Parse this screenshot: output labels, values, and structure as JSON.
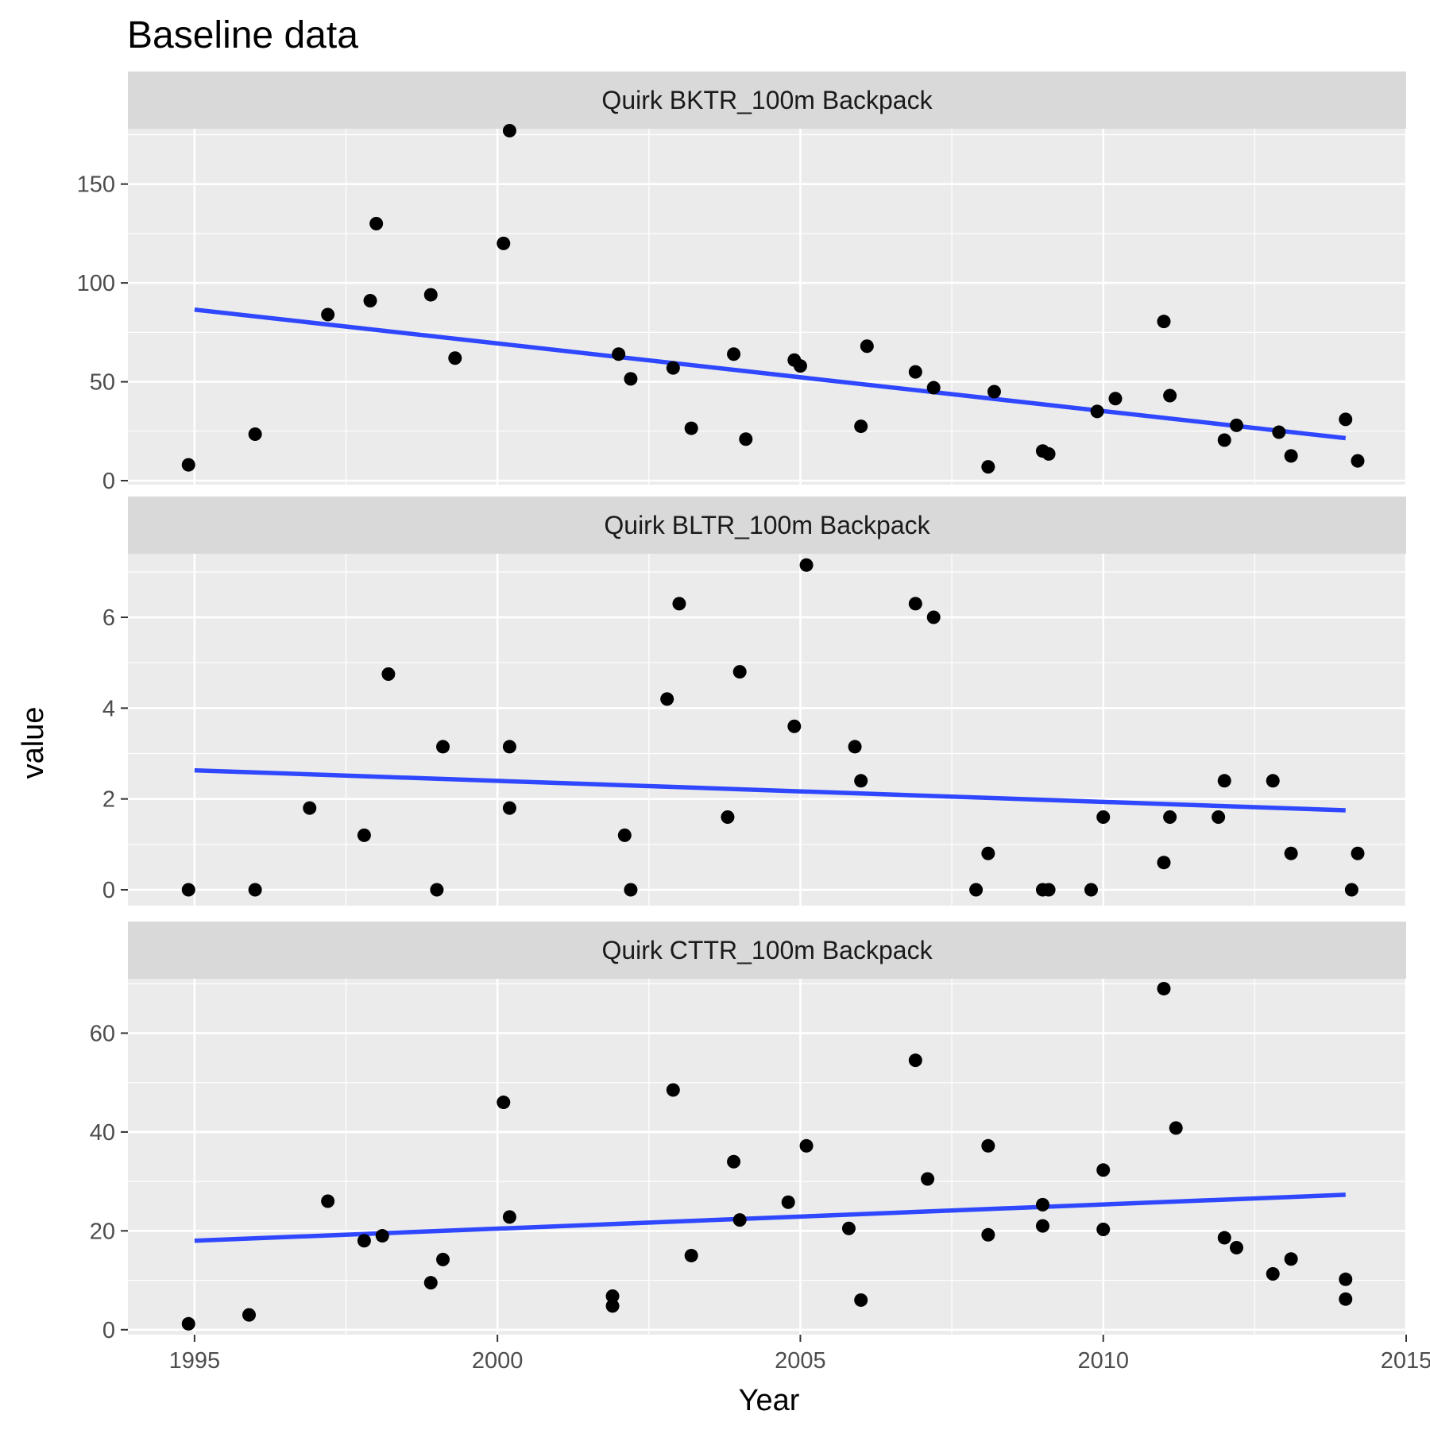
{
  "chart_data": {
    "type": "scatter",
    "title": "Baseline data",
    "xlabel": "Year",
    "ylabel": "value",
    "xlim": [
      1993.9,
      2015.0
    ],
    "x_ticks": [
      1995,
      2000,
      2005,
      2010,
      2015
    ],
    "grid": true,
    "legend": "none",
    "colors": {
      "points": "#000000",
      "trend": "#2f47ff",
      "panel": "#ebebeb",
      "strip": "#d9d9d9",
      "grid": "#ffffff"
    },
    "panels": [
      {
        "strip": "Quirk   BKTR_100m   Backpack",
        "ylim": [
          -2,
          178
        ],
        "y_ticks": [
          0,
          50,
          100,
          150
        ],
        "trend": {
          "x": [
            1995,
            2014
          ],
          "y": [
            86.5,
            21.5
          ]
        },
        "points": [
          [
            1994.9,
            8
          ],
          [
            1996,
            23.5
          ],
          [
            1997.2,
            84
          ],
          [
            1997.9,
            91
          ],
          [
            1998,
            130
          ],
          [
            1998.9,
            94
          ],
          [
            1999.3,
            62
          ],
          [
            2000.1,
            120
          ],
          [
            2000.2,
            177
          ],
          [
            2002,
            64
          ],
          [
            2002.2,
            51.5
          ],
          [
            2002.9,
            57
          ],
          [
            2003.2,
            26.5
          ],
          [
            2003.9,
            64
          ],
          [
            2004.1,
            21
          ],
          [
            2004.9,
            61
          ],
          [
            2005,
            58
          ],
          [
            2006,
            27.5
          ],
          [
            2006.1,
            68
          ],
          [
            2006.9,
            55
          ],
          [
            2007.2,
            47
          ],
          [
            2008.1,
            7
          ],
          [
            2008.2,
            45
          ],
          [
            2009,
            15
          ],
          [
            2009.1,
            13.5
          ],
          [
            2009.9,
            35
          ],
          [
            2010.2,
            41.5
          ],
          [
            2011,
            80.5
          ],
          [
            2011.1,
            43
          ],
          [
            2012,
            20.5
          ],
          [
            2012.2,
            28
          ],
          [
            2012.9,
            24.5
          ],
          [
            2013.1,
            12.5
          ],
          [
            2014,
            31
          ],
          [
            2014.2,
            10
          ]
        ]
      },
      {
        "strip": "Quirk   BLTR_100m   Backpack",
        "ylim": [
          -0.35,
          7.4
        ],
        "y_ticks": [
          0,
          2,
          4,
          6
        ],
        "trend": {
          "x": [
            1995,
            2014
          ],
          "y": [
            2.63,
            1.75
          ]
        },
        "points": [
          [
            1994.9,
            0
          ],
          [
            1996,
            0
          ],
          [
            1996.9,
            1.8
          ],
          [
            1997.8,
            1.2
          ],
          [
            1998.2,
            4.75
          ],
          [
            1999,
            0
          ],
          [
            1999.1,
            3.15
          ],
          [
            2000.2,
            3.15
          ],
          [
            2000.2,
            1.8
          ],
          [
            2002.1,
            1.2
          ],
          [
            2002.2,
            0
          ],
          [
            2002.8,
            4.2
          ],
          [
            2003,
            6.3
          ],
          [
            2003.8,
            1.6
          ],
          [
            2004,
            4.8
          ],
          [
            2004.9,
            3.6
          ],
          [
            2005.1,
            7.15
          ],
          [
            2005.9,
            3.15
          ],
          [
            2006,
            2.4
          ],
          [
            2006.9,
            6.3
          ],
          [
            2007.2,
            6
          ],
          [
            2007.9,
            0
          ],
          [
            2008.1,
            0.8
          ],
          [
            2009,
            0
          ],
          [
            2009.1,
            0
          ],
          [
            2009.8,
            0
          ],
          [
            2010,
            1.6
          ],
          [
            2011,
            0.6
          ],
          [
            2011.1,
            1.6
          ],
          [
            2011.9,
            1.6
          ],
          [
            2012,
            2.4
          ],
          [
            2012.8,
            2.4
          ],
          [
            2013.1,
            0.8
          ],
          [
            2014.1,
            0
          ],
          [
            2014.2,
            0.8
          ]
        ]
      },
      {
        "strip": "Quirk   CTTR_100m   Backpack",
        "ylim": [
          -1,
          71
        ],
        "y_ticks": [
          0,
          20,
          40,
          60
        ],
        "trend": {
          "x": [
            1995,
            2014
          ],
          "y": [
            18,
            27.3
          ]
        },
        "points": [
          [
            1994.9,
            1.2
          ],
          [
            1995.9,
            3
          ],
          [
            1997.2,
            26
          ],
          [
            1997.8,
            18
          ],
          [
            1998.1,
            19
          ],
          [
            1998.9,
            9.5
          ],
          [
            1999.1,
            14.2
          ],
          [
            2000.1,
            46
          ],
          [
            2000.2,
            22.8
          ],
          [
            2001.9,
            6.8
          ],
          [
            2001.9,
            4.8
          ],
          [
            2002.9,
            48.5
          ],
          [
            2003.2,
            15
          ],
          [
            2003.9,
            34
          ],
          [
            2004,
            22.2
          ],
          [
            2004.8,
            25.8
          ],
          [
            2005.1,
            37.2
          ],
          [
            2005.8,
            20.5
          ],
          [
            2006,
            6
          ],
          [
            2006.9,
            54.5
          ],
          [
            2007.1,
            30.5
          ],
          [
            2008.1,
            37.2
          ],
          [
            2008.1,
            19.2
          ],
          [
            2009,
            25.3
          ],
          [
            2009,
            21
          ],
          [
            2010,
            20.3
          ],
          [
            2010,
            32.3
          ],
          [
            2011,
            69
          ],
          [
            2011.2,
            40.8
          ],
          [
            2012,
            18.6
          ],
          [
            2012.2,
            16.6
          ],
          [
            2012.8,
            11.3
          ],
          [
            2013.1,
            14.3
          ],
          [
            2014,
            10.2
          ],
          [
            2014,
            6.2
          ]
        ]
      }
    ]
  }
}
